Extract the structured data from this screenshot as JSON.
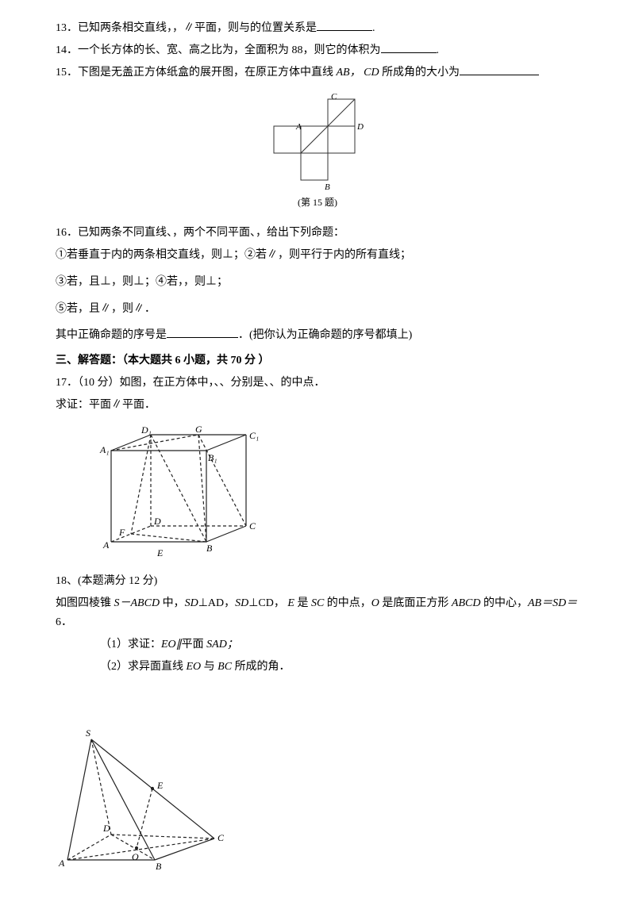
{
  "q13": {
    "text_a": "13．已知两条相交直线，，∥平面，则与的位置关系是",
    "blank_w": 70,
    "text_b": "."
  },
  "q14": {
    "text_a": " 14．一个长方体的长、宽、高之比为，全面积为 88，则它的体积为",
    "blank_w": 70,
    "text_b": "."
  },
  "q15": {
    "text_a": "15．下图是无盖正方体纸盒的展开图，在原正方体中直线",
    "ab": " AB，",
    "cd": " CD ",
    "text_b": "所成角的大小为",
    "blank_w": 100
  },
  "fig15": {
    "stroke": "#333333",
    "fill": "none",
    "sw": 1,
    "cell": 34,
    "ox": 40,
    "oy": 6,
    "labels": {
      "A": "A",
      "B": "B",
      "C": "C",
      "D": "D"
    },
    "caption": "(第 15 题)"
  },
  "q16": {
    "l1": "16．已知两条不同直线、，两个不同平面、，给出下列命题：",
    "l2": "①若垂直于内的两条相交直线，则⊥；②若∥，则平行于内的所有直线；",
    "l3": "③若，且⊥，则⊥；④若，，则⊥；",
    "l4": "⑤若，且∥，则∥．",
    "l5a": "其中正确命题的序号是",
    "blank_w": 90,
    "l5b": "．(把你认为正确命题的序号都填上)"
  },
  "section3": "三、解答题：（本大题共 6 小题，共 70 分 ）",
  "q17": {
    "l1": "17．（10 分）如图，在正方体中，、、分别是、、的中点．",
    "l2": "求证：平面∥平面．"
  },
  "fig17": {
    "stroke": "#222222",
    "labels": {
      "A": "A",
      "B": "B",
      "C": "C",
      "D": "D",
      "A1": "A₁",
      "B1": "B₁",
      "C1": "C₁",
      "D1": "D₁",
      "E": "E",
      "F": "F",
      "G": "G"
    }
  },
  "q18": {
    "l1": "18、(本题满分 12 分)",
    "l2a": "如图四棱锥 ",
    "sabcd": "S－ABCD ",
    "l2b": "中，",
    "sd1": "SD",
    "perp1": "⊥AD，",
    "sd2": "SD",
    "perp2": "⊥CD，  ",
    "e": "E ",
    "l2c": "是 ",
    "sc": "SC ",
    "l2d": "的中点，",
    "o": "O ",
    "l2e": "是底面正方形 ",
    "abcd": "ABCD ",
    "l2f": "的中心，",
    "ab": "AB＝SD＝",
    "six": "6．",
    "p1a": "（1）求证：",
    "eo1": "EO∥",
    "p1b": "平面 ",
    "sad": "SAD；",
    "p2a": "（2）求异面直线 ",
    "eo2": "EO ",
    "p2b": "与 ",
    "bc": "BC ",
    "p2c": "所成的角．"
  },
  "fig18": {
    "stroke": "#222222",
    "labels": {
      "S": "S",
      "A": "A",
      "B": "B",
      "C": "C",
      "D": "D",
      "E": "E",
      "O": "O"
    }
  },
  "italic_font": "Times New Roman, serif"
}
